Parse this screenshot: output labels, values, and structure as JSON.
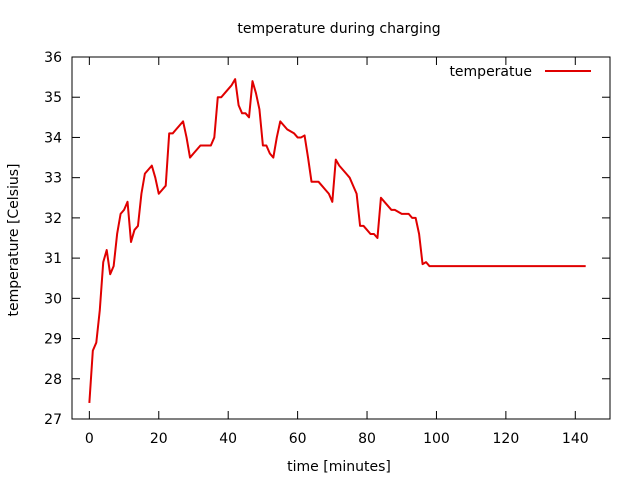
{
  "chart_data": {
    "type": "line",
    "title": "temperature during charging",
    "xlabel": "time [minutes]",
    "ylabel": "temperature [Celsius]",
    "xlim": [
      -5,
      150
    ],
    "ylim": [
      27,
      36
    ],
    "x_ticks": [
      0,
      20,
      40,
      60,
      80,
      100,
      120,
      140
    ],
    "y_ticks": [
      27,
      28,
      29,
      30,
      31,
      32,
      33,
      34,
      35,
      36
    ],
    "grid": false,
    "legend_position": "top-right",
    "series": [
      {
        "name": "temperatue",
        "color": "#e00000",
        "x": [
          0,
          1,
          2,
          3,
          4,
          5,
          6,
          7,
          8,
          9,
          10,
          11,
          12,
          13,
          14,
          15,
          16,
          17,
          18,
          19,
          20,
          21,
          22,
          23,
          24,
          25,
          26,
          27,
          28,
          29,
          30,
          31,
          32,
          33,
          34,
          35,
          36,
          37,
          38,
          39,
          40,
          41,
          42,
          43,
          44,
          45,
          46,
          47,
          48,
          49,
          50,
          51,
          52,
          53,
          54,
          55,
          56,
          57,
          58,
          59,
          60,
          61,
          62,
          63,
          64,
          65,
          66,
          67,
          68,
          69,
          70,
          71,
          72,
          73,
          74,
          75,
          76,
          77,
          78,
          79,
          80,
          81,
          82,
          83,
          84,
          85,
          86,
          87,
          88,
          89,
          90,
          91,
          92,
          93,
          94,
          95,
          96,
          97,
          98,
          99,
          100,
          101,
          102,
          103,
          104,
          105,
          106,
          107,
          108,
          109,
          110,
          111,
          112,
          113,
          114,
          115,
          116,
          117,
          118,
          119,
          120,
          121,
          122,
          123,
          124,
          125,
          126,
          127,
          128,
          129,
          130,
          131,
          132,
          133,
          134,
          135,
          136,
          137,
          138,
          139,
          140,
          141,
          142,
          143
        ],
        "y": [
          27.4,
          28.7,
          28.9,
          29.7,
          30.9,
          31.2,
          30.6,
          30.8,
          31.6,
          32.1,
          32.2,
          32.4,
          31.4,
          31.7,
          31.8,
          32.6,
          33.1,
          33.2,
          33.3,
          33.0,
          32.6,
          32.7,
          32.8,
          34.1,
          34.1,
          34.2,
          34.3,
          34.4,
          34.0,
          33.5,
          33.6,
          33.7,
          33.8,
          33.8,
          33.8,
          33.8,
          34.0,
          35.0,
          35.0,
          35.1,
          35.2,
          35.3,
          35.45,
          34.8,
          34.6,
          34.6,
          34.5,
          35.4,
          35.1,
          34.7,
          33.8,
          33.8,
          33.6,
          33.5,
          34.0,
          34.4,
          34.3,
          34.2,
          34.15,
          34.1,
          34.0,
          34.0,
          34.05,
          33.5,
          32.9,
          32.9,
          32.9,
          32.8,
          32.7,
          32.6,
          32.4,
          33.45,
          33.3,
          33.2,
          33.1,
          33.0,
          32.8,
          32.6,
          31.8,
          31.8,
          31.7,
          31.6,
          31.6,
          31.5,
          32.5,
          32.4,
          32.3,
          32.2,
          32.2,
          32.15,
          32.1,
          32.1,
          32.1,
          32.0,
          32.0,
          31.6,
          30.85,
          30.9,
          30.8,
          30.8,
          30.8,
          30.8,
          30.8,
          30.8,
          30.8,
          30.8,
          30.8,
          30.8,
          30.8,
          30.8,
          30.8,
          30.8,
          30.8,
          30.8,
          30.8,
          30.8,
          30.8,
          30.8,
          30.8,
          30.8,
          30.8,
          30.8,
          30.8,
          30.8,
          30.8,
          30.8,
          30.8,
          30.8,
          30.8,
          30.8,
          30.8,
          30.8,
          30.8,
          30.8,
          30.8,
          30.8,
          30.8,
          30.8,
          30.8,
          30.8,
          30.8,
          30.8,
          30.8,
          30.8
        ]
      }
    ]
  }
}
